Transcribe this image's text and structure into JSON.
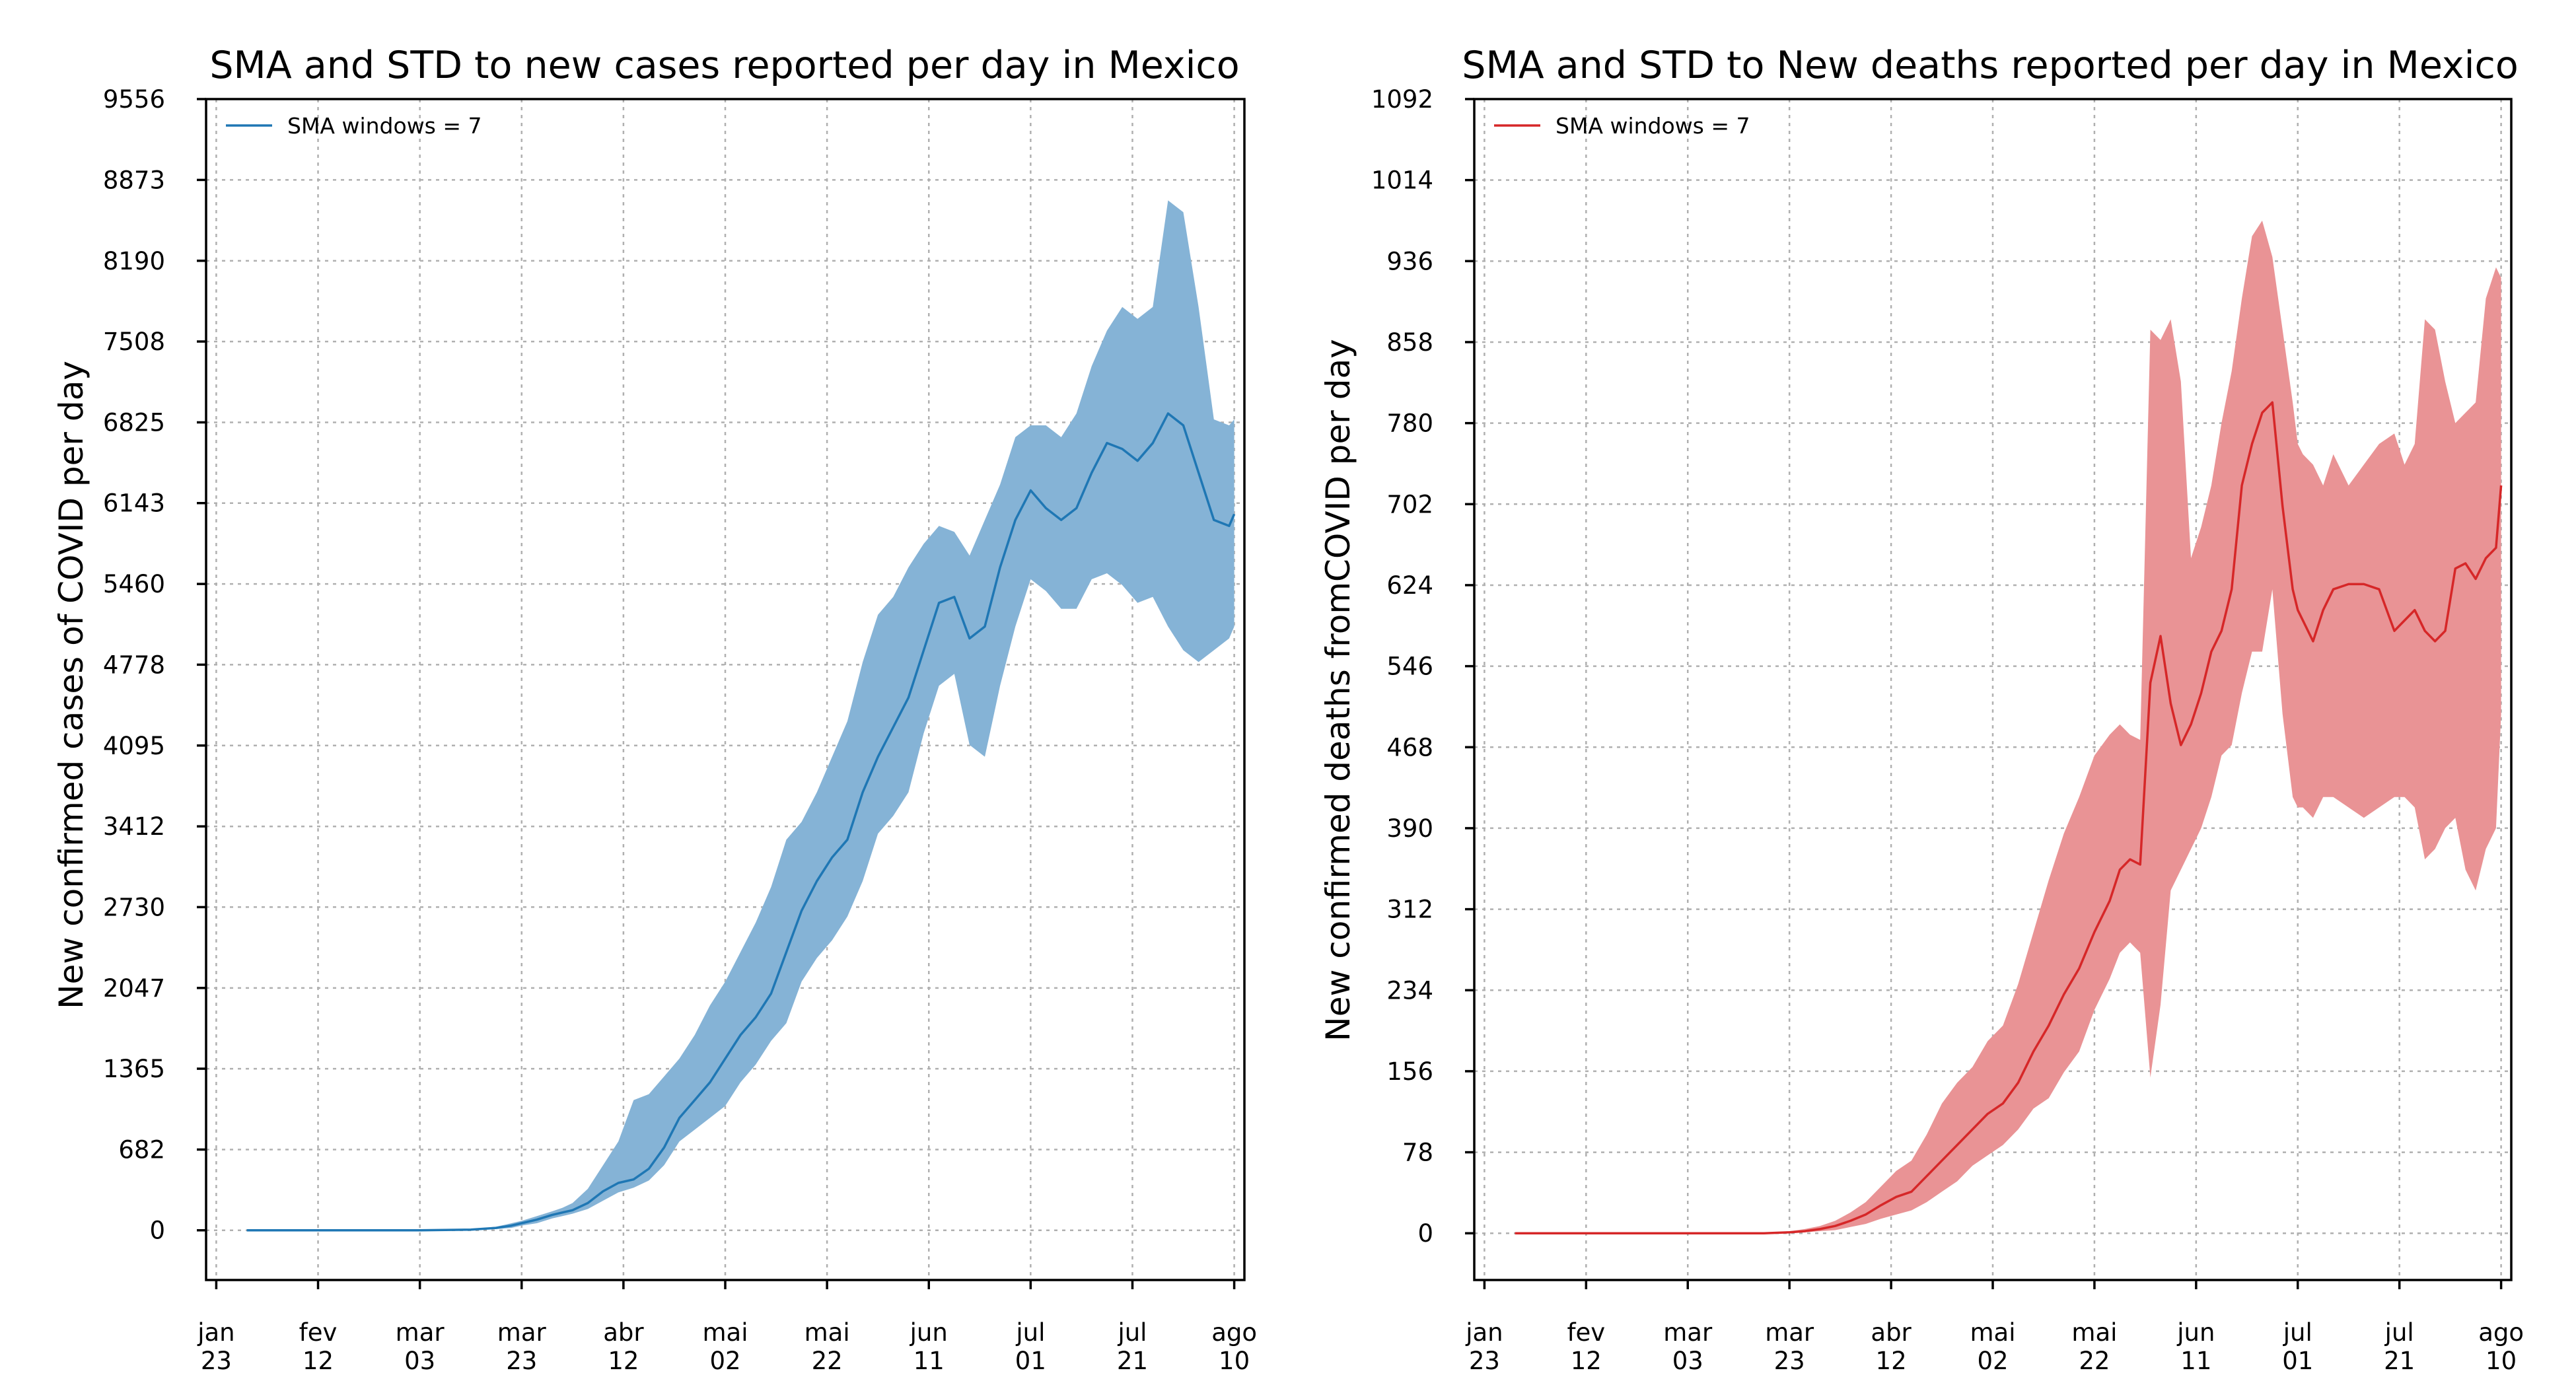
{
  "chart_data": [
    {
      "type": "line",
      "title": "SMA and STD to new cases reported per day in Mexico",
      "xlabel": "",
      "ylabel": "New confirmed cases of COVID per day",
      "legend": {
        "label": "SMA windows = 7",
        "position": "top-left"
      },
      "color": "#1f77b4",
      "band_color": "#85b3d6",
      "grid": true,
      "x_range": [
        -2,
        202
      ],
      "ylim": [
        -420,
        9556
      ],
      "y_ticks": [
        0,
        682,
        1365,
        2047,
        2730,
        3412,
        4095,
        4778,
        5460,
        6143,
        6825,
        7508,
        8190,
        8873,
        9556
      ],
      "x_ticks": [
        {
          "label": [
            "jan",
            "23"
          ],
          "day": 0
        },
        {
          "label": [
            "fev",
            "12"
          ],
          "day": 20
        },
        {
          "label": [
            "mar",
            "03"
          ],
          "day": 40
        },
        {
          "label": [
            "mar",
            "23"
          ],
          "day": 60
        },
        {
          "label": [
            "abr",
            "12"
          ],
          "day": 80
        },
        {
          "label": [
            "mai",
            "02"
          ],
          "day": 100
        },
        {
          "label": [
            "mai",
            "22"
          ],
          "day": 120
        },
        {
          "label": [
            "jun",
            "11"
          ],
          "day": 140
        },
        {
          "label": [
            "jul",
            "01"
          ],
          "day": 160
        },
        {
          "label": [
            "jul",
            "21"
          ],
          "day": 180
        },
        {
          "label": [
            "ago",
            "10"
          ],
          "day": 200
        }
      ],
      "series": [
        {
          "x": [
            6,
            40,
            50,
            55,
            58,
            60,
            63,
            66,
            68,
            70,
            73,
            76,
            79,
            82,
            85,
            88,
            91,
            94,
            97,
            100,
            103,
            106,
            109,
            112,
            115,
            118,
            121,
            124,
            127,
            130,
            133,
            136,
            139,
            142,
            145,
            148,
            151,
            154,
            157,
            160,
            163,
            166,
            169,
            172,
            175,
            178,
            181,
            184,
            187,
            190,
            193,
            196,
            199,
            200
          ],
          "y": [
            0,
            0,
            5,
            20,
            40,
            60,
            90,
            130,
            150,
            170,
            230,
            330,
            400,
            430,
            520,
            700,
            950,
            1100,
            1250,
            1450,
            1650,
            1800,
            2000,
            2350,
            2700,
            2950,
            3150,
            3300,
            3700,
            4000,
            4250,
            4500,
            4900,
            5300,
            5350,
            5000,
            5100,
            5600,
            6000,
            6250,
            6100,
            6000,
            6100,
            6400,
            6650,
            6600,
            6500,
            6650,
            6900,
            6800,
            6400,
            6000,
            5950,
            6050
          ],
          "upper": [
            0,
            0,
            8,
            30,
            60,
            80,
            120,
            160,
            190,
            230,
            350,
            550,
            750,
            1100,
            1150,
            1300,
            1450,
            1650,
            1900,
            2100,
            2350,
            2600,
            2900,
            3300,
            3450,
            3700,
            4000,
            4300,
            4800,
            5200,
            5350,
            5600,
            5800,
            5950,
            5900,
            5700,
            6000,
            6300,
            6700,
            6800,
            6800,
            6700,
            6900,
            7300,
            7600,
            7800,
            7700,
            7800,
            8700,
            8600,
            7800,
            6850,
            6800,
            6850
          ],
          "lower": [
            0,
            0,
            3,
            10,
            20,
            40,
            60,
            100,
            120,
            140,
            180,
            250,
            320,
            360,
            420,
            550,
            750,
            850,
            950,
            1050,
            1250,
            1400,
            1600,
            1750,
            2100,
            2300,
            2450,
            2650,
            2950,
            3350,
            3500,
            3700,
            4200,
            4600,
            4700,
            4100,
            4000,
            4600,
            5100,
            5500,
            5400,
            5250,
            5250,
            5500,
            5550,
            5450,
            5300,
            5350,
            5100,
            4900,
            4800,
            4900,
            5000,
            5100
          ]
        }
      ]
    },
    {
      "type": "line",
      "title": "SMA and STD to New deaths reported per day in Mexico",
      "xlabel": "",
      "ylabel": "New confirmed deaths fromCOVID per day",
      "legend": {
        "label": "SMA windows = 7",
        "position": "top-left"
      },
      "color": "#d62728",
      "band_color": "#e99395",
      "grid": true,
      "x_range": [
        -2,
        202
      ],
      "ylim": [
        -45,
        1092
      ],
      "y_ticks": [
        0,
        78,
        156,
        234,
        312,
        390,
        468,
        546,
        624,
        702,
        780,
        858,
        936,
        1014,
        1092
      ],
      "x_ticks": [
        {
          "label": [
            "jan",
            "23"
          ],
          "day": 0
        },
        {
          "label": [
            "fev",
            "12"
          ],
          "day": 20
        },
        {
          "label": [
            "mar",
            "03"
          ],
          "day": 40
        },
        {
          "label": [
            "mar",
            "23"
          ],
          "day": 60
        },
        {
          "label": [
            "abr",
            "12"
          ],
          "day": 80
        },
        {
          "label": [
            "mai",
            "02"
          ],
          "day": 100
        },
        {
          "label": [
            "mai",
            "22"
          ],
          "day": 120
        },
        {
          "label": [
            "jun",
            "11"
          ],
          "day": 140
        },
        {
          "label": [
            "jul",
            "01"
          ],
          "day": 160
        },
        {
          "label": [
            "jul",
            "21"
          ],
          "day": 180
        },
        {
          "label": [
            "ago",
            "10"
          ],
          "day": 200
        }
      ],
      "series": [
        {
          "x": [
            6,
            55,
            60,
            63,
            66,
            69,
            72,
            75,
            78,
            81,
            84,
            87,
            90,
            93,
            96,
            99,
            102,
            105,
            108,
            111,
            114,
            117,
            120,
            123,
            125,
            127,
            129,
            131,
            133,
            135,
            137,
            139,
            141,
            143,
            145,
            147,
            149,
            151,
            153,
            155,
            157,
            159,
            160,
            161,
            163,
            165,
            167,
            170,
            173,
            176,
            179,
            181,
            183,
            185,
            187,
            189,
            191,
            193,
            195,
            197,
            199,
            200
          ],
          "y": [
            0,
            0,
            1,
            2,
            4,
            7,
            12,
            18,
            27,
            35,
            40,
            55,
            70,
            85,
            100,
            115,
            125,
            145,
            175,
            200,
            230,
            255,
            290,
            320,
            350,
            360,
            355,
            530,
            575,
            510,
            470,
            490,
            520,
            560,
            580,
            620,
            720,
            760,
            790,
            800,
            700,
            620,
            600,
            590,
            570,
            600,
            620,
            625,
            625,
            620,
            580,
            590,
            600,
            580,
            570,
            580,
            640,
            645,
            630,
            650,
            660,
            720
          ],
          "upper": [
            0,
            0,
            2,
            4,
            7,
            12,
            20,
            30,
            45,
            60,
            70,
            95,
            125,
            145,
            160,
            185,
            200,
            240,
            290,
            340,
            385,
            420,
            460,
            480,
            490,
            480,
            475,
            870,
            860,
            880,
            820,
            650,
            680,
            720,
            780,
            830,
            900,
            960,
            975,
            940,
            870,
            800,
            760,
            750,
            740,
            720,
            750,
            720,
            740,
            760,
            770,
            740,
            760,
            880,
            870,
            820,
            780,
            790,
            800,
            900,
            930,
            920
          ],
          "lower": [
            0,
            0,
            0,
            1,
            2,
            3,
            6,
            9,
            14,
            18,
            22,
            30,
            40,
            50,
            65,
            75,
            85,
            100,
            120,
            130,
            155,
            175,
            215,
            245,
            270,
            280,
            270,
            150,
            220,
            330,
            350,
            370,
            390,
            420,
            460,
            470,
            520,
            560,
            560,
            620,
            500,
            420,
            410,
            410,
            400,
            420,
            420,
            410,
            400,
            410,
            420,
            420,
            410,
            360,
            370,
            390,
            400,
            350,
            330,
            370,
            390,
            500
          ]
        }
      ]
    }
  ]
}
